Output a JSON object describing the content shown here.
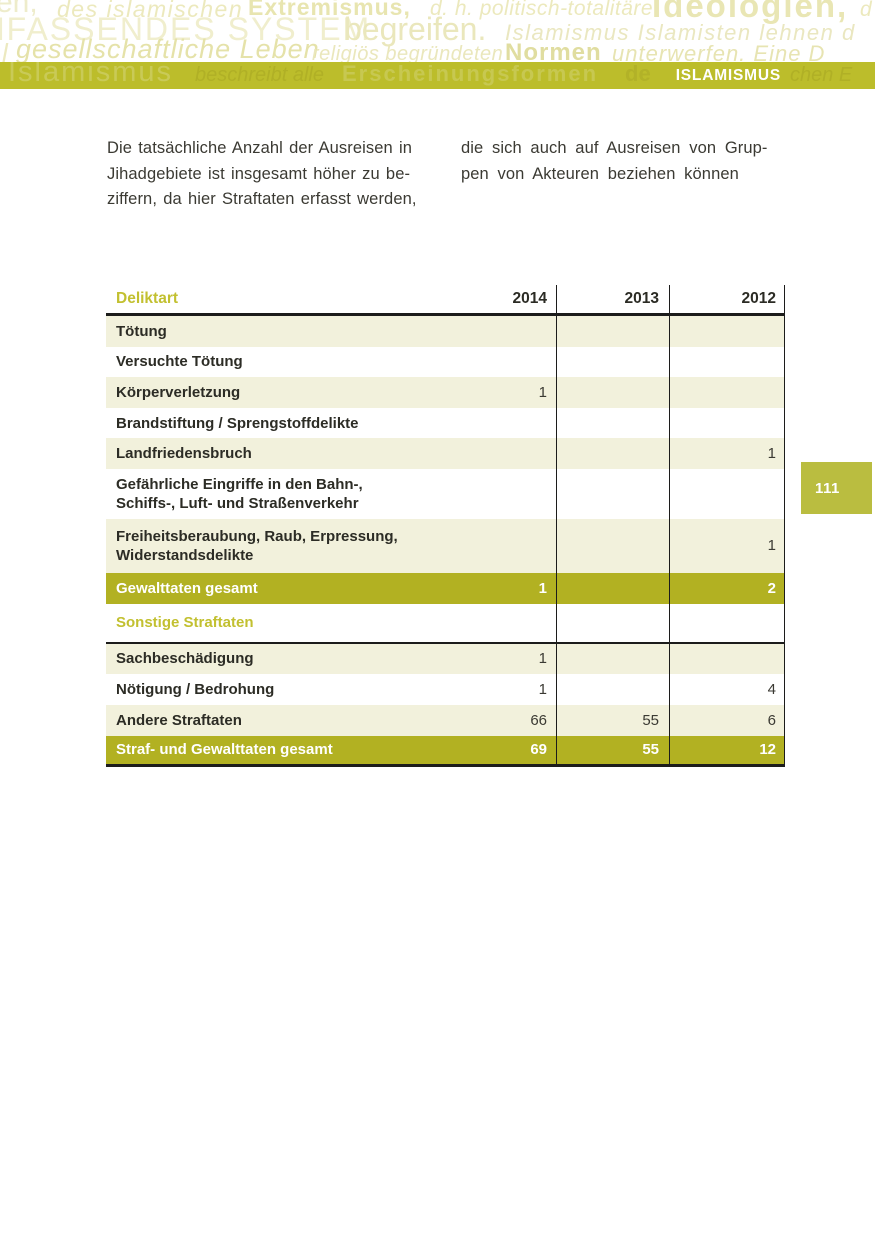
{
  "header": {
    "cloud1": [
      "en,",
      "des islamischen",
      "Extremismus,",
      "d. h. politisch-totalitäre",
      "Ideologien,",
      "d"
    ],
    "cloud2": [
      "MFASSENDES SYSTEM",
      "begreifen.",
      "Islamismus Islamisten lehnen d"
    ],
    "cloud3": [
      "l",
      "gesellschaftliche Leben",
      "religiös begründeten",
      "Normen",
      "unterwerfen. Eine D"
    ],
    "bar_ghost": [
      "Islamismus",
      "beschreibt alle",
      "Erscheinungsformen",
      "de",
      "chen E"
    ],
    "bar_label": "ISLAMISMUS"
  },
  "intro": {
    "left": "Die tatsächliche Anzahl der Ausreisen in\nJihadgebiete ist insgesamt höher zu be-\nziffern, da hier Straftaten erfasst werden,",
    "right": "die sich auch auf Ausreisen von Grup-\npen von Akteuren beziehen können"
  },
  "page_tab": {
    "number": "111"
  },
  "table": {
    "header": {
      "col0": "Deliktart",
      "col1": "2014",
      "col2": "2013",
      "col3": "2012"
    },
    "rows": [
      {
        "label": "Tötung",
        "values": [
          "",
          "",
          ""
        ]
      },
      {
        "label": "Versuchte Tötung",
        "values": [
          "",
          "",
          ""
        ]
      },
      {
        "label": "Körperverletzung",
        "values": [
          "1",
          "",
          ""
        ]
      },
      {
        "label": "Brandstiftung / Sprengstoffdelikte",
        "values": [
          "",
          "",
          ""
        ]
      },
      {
        "label": "Landfriedensbruch",
        "values": [
          "",
          "",
          "1"
        ]
      },
      {
        "label": "Gefährliche Eingriffe in den Bahn-,\nSchiffs-, Luft- und Straßenverkehr",
        "values": [
          "",
          "",
          ""
        ]
      },
      {
        "label": "Freiheitsberaubung, Raub, Erpressung,\nWiderstandsdelikte",
        "values": [
          "",
          "",
          "1"
        ]
      },
      {
        "label": "Gewalttaten gesamt",
        "values": [
          "1",
          "",
          "2"
        ]
      },
      {
        "label": "Sonstige Straftaten",
        "values": [
          "",
          "",
          ""
        ]
      },
      {
        "label": "Sachbeschädigung",
        "values": [
          "1",
          "",
          ""
        ]
      },
      {
        "label": "Nötigung / Bedrohung",
        "values": [
          "1",
          "",
          "4"
        ]
      },
      {
        "label": "Andere Straftaten",
        "values": [
          "66",
          "55",
          "6"
        ]
      },
      {
        "label": "Straf- und Gewalttaten gesamt",
        "values": [
          "69",
          "55",
          "12"
        ]
      }
    ]
  },
  "colors": {
    "accent_olive": "#bcbd2b",
    "highlight_row": "#b2b122",
    "shaded_row": "#f2f1dc",
    "page_tab": "#babd40",
    "accent_text": "#c2c030",
    "body_text": "#3b3a33"
  }
}
